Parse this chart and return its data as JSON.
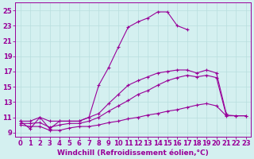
{
  "xlim": [
    -0.5,
    23.5
  ],
  "ylim": [
    8.5,
    26.0
  ],
  "yticks": [
    9,
    11,
    13,
    15,
    17,
    19,
    21,
    23,
    25
  ],
  "xticks": [
    0,
    1,
    2,
    3,
    4,
    5,
    6,
    7,
    8,
    9,
    10,
    11,
    12,
    13,
    14,
    15,
    16,
    17,
    18,
    19,
    20,
    21,
    22,
    23
  ],
  "line_color": "#990099",
  "bg_color": "#d4f0f0",
  "grid_color": "#b8dede",
  "xlabel": "Windchill (Refroidissement éolien,°C)",
  "xlabel_fontsize": 6.5,
  "tick_fontsize": 6,
  "curve_peak": {
    "x": [
      0,
      1,
      2,
      3,
      4,
      5,
      6,
      7,
      8,
      9,
      10,
      11,
      12,
      13,
      14,
      15,
      16,
      17
    ],
    "y": [
      10.5,
      9.5,
      11.0,
      9.5,
      10.5,
      10.5,
      10.5,
      11.0,
      15.2,
      17.5,
      20.2,
      22.8,
      23.5,
      24.0,
      24.8,
      24.8,
      23.0,
      22.5
    ]
  },
  "curve_upper": {
    "x": [
      0,
      1,
      2,
      3,
      4,
      5,
      6,
      7,
      8,
      9,
      10,
      11,
      12,
      13,
      14,
      15,
      16,
      17,
      18,
      19,
      20,
      21
    ],
    "y": [
      10.5,
      10.5,
      11.0,
      10.5,
      10.5,
      10.5,
      10.5,
      11.0,
      11.5,
      12.8,
      14.0,
      15.2,
      15.8,
      16.3,
      16.8,
      17.0,
      17.2,
      17.2,
      16.8,
      17.2,
      16.8,
      11.5
    ]
  },
  "curve_mid": {
    "x": [
      0,
      1,
      2,
      3,
      4,
      5,
      6,
      7,
      8,
      9,
      10,
      11,
      12,
      13,
      14,
      15,
      16,
      17,
      18,
      19,
      20,
      21,
      22,
      23
    ],
    "y": [
      10.2,
      10.2,
      10.3,
      9.7,
      10.0,
      10.2,
      10.2,
      10.5,
      11.0,
      11.8,
      12.5,
      13.2,
      14.0,
      14.5,
      15.2,
      15.8,
      16.2,
      16.5,
      16.3,
      16.5,
      16.2,
      11.3,
      11.2,
      11.2
    ]
  },
  "curve_low": {
    "x": [
      0,
      1,
      2,
      3,
      4,
      5,
      6,
      7,
      8,
      9,
      10,
      11,
      12,
      13,
      14,
      15,
      16,
      17,
      18,
      19,
      20,
      21,
      22,
      23
    ],
    "y": [
      10.0,
      9.8,
      9.8,
      9.3,
      9.3,
      9.6,
      9.8,
      9.8,
      10.0,
      10.3,
      10.5,
      10.8,
      11.0,
      11.3,
      11.5,
      11.8,
      12.0,
      12.3,
      12.6,
      12.8,
      12.5,
      11.2,
      11.2,
      11.2
    ]
  }
}
